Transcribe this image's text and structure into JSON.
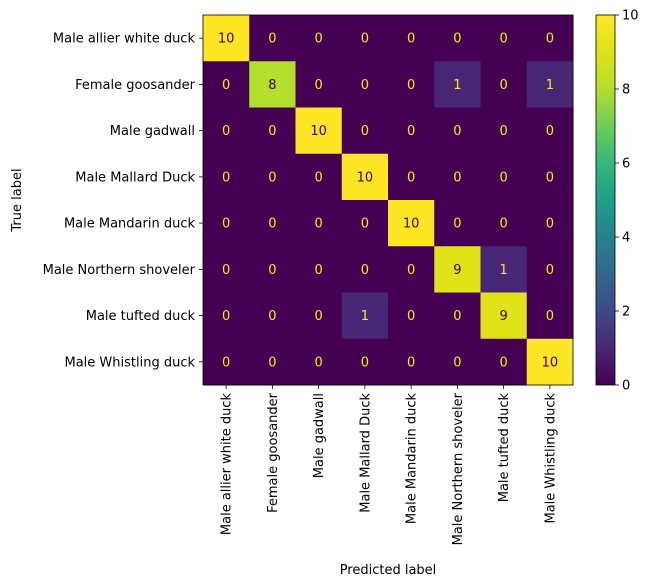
{
  "chart_data": {
    "type": "heatmap",
    "xlabel": "Predicted label",
    "ylabel": "True label",
    "x_categories": [
      "Male allier white duck",
      "Female goosander",
      "Male gadwall",
      "Male Mallard Duck",
      "Male Mandarin duck",
      "Male Northern shoveler",
      "Male tufted duck",
      "Male Whistling duck"
    ],
    "y_categories": [
      "Male allier white duck",
      "Female goosander",
      "Male gadwall",
      "Male Mallard Duck",
      "Male Mandarin duck",
      "Male Northern shoveler",
      "Male tufted duck",
      "Male Whistling duck"
    ],
    "values": [
      [
        10,
        0,
        0,
        0,
        0,
        0,
        0,
        0
      ],
      [
        0,
        8,
        0,
        0,
        0,
        1,
        0,
        1
      ],
      [
        0,
        0,
        10,
        0,
        0,
        0,
        0,
        0
      ],
      [
        0,
        0,
        0,
        10,
        0,
        0,
        0,
        0
      ],
      [
        0,
        0,
        0,
        0,
        10,
        0,
        0,
        0
      ],
      [
        0,
        0,
        0,
        0,
        0,
        9,
        1,
        0
      ],
      [
        0,
        0,
        0,
        1,
        0,
        0,
        9,
        0
      ],
      [
        0,
        0,
        0,
        0,
        0,
        0,
        0,
        10
      ]
    ],
    "colorbar": {
      "range": [
        0,
        10
      ],
      "ticks": [
        "0",
        "2",
        "4",
        "6",
        "8",
        "10"
      ],
      "colormap": "viridis"
    },
    "colors": {
      "low_text": "#fde725",
      "high_text": "#440154"
    }
  }
}
